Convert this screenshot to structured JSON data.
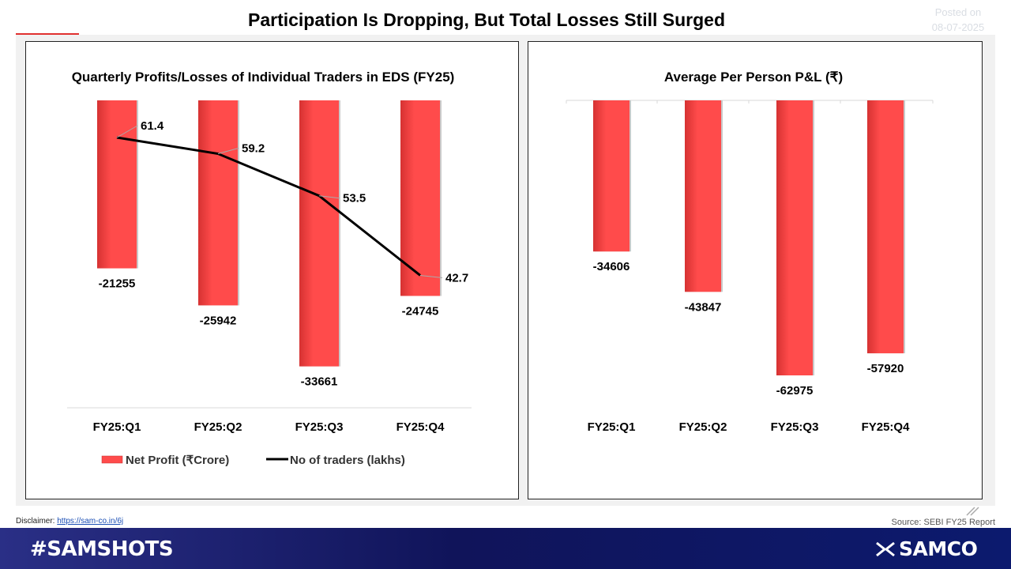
{
  "header": {
    "title": "Participation Is Dropping, But Total Losses Still Surged",
    "posted_label": "Posted on",
    "posted_date": "08-07-2025"
  },
  "chart_data": [
    {
      "type": "bar",
      "title": "Quarterly Profits/Losses of Individual Traders in EDS (FY25)",
      "categories": [
        "FY25:Q1",
        "FY25:Q2",
        "FY25:Q3",
        "FY25:Q4"
      ],
      "series": [
        {
          "name": "Net Profit (₹Crore)",
          "type": "bar",
          "values": [
            -21255,
            -25942,
            -33661,
            -24745
          ],
          "color": "#ff4b4b"
        },
        {
          "name": "No of traders (lakhs)",
          "type": "line",
          "values": [
            61.4,
            59.2,
            53.5,
            42.7
          ],
          "color": "#000000"
        }
      ],
      "legend_position": "bottom",
      "grid": false
    },
    {
      "type": "bar",
      "title": "Average Per Person P&L (₹)",
      "categories": [
        "FY25:Q1",
        "FY25:Q2",
        "FY25:Q3",
        "FY25:Q4"
      ],
      "series": [
        {
          "values": [
            -34606,
            -43847,
            -62975,
            -57920
          ],
          "color": "#ff4b4b"
        }
      ],
      "grid": false
    }
  ],
  "footer": {
    "disclaimer_label": "Disclaimer:",
    "disclaimer_link": "https://sam-co.in/6j",
    "source": "Source: SEBI FY25 Report",
    "hashtag": "#SAMSHOTS",
    "brand": "SAMCO"
  }
}
